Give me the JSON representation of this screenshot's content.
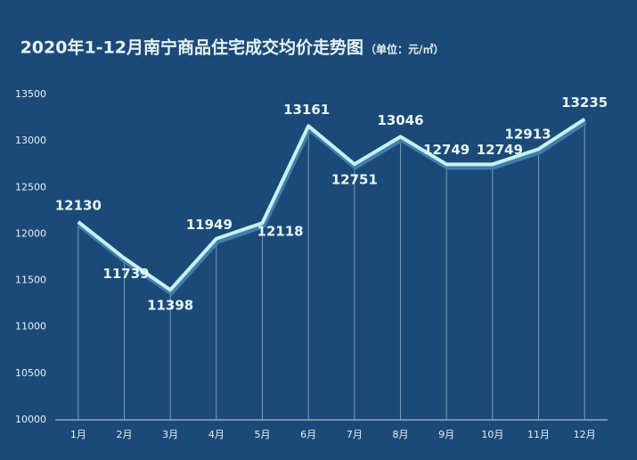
{
  "chart_data": {
    "type": "line",
    "title": "2020年1-12月南宁商品住宅成交均价走势图",
    "subtitle": "（单位：元/㎡）",
    "categories": [
      "1月",
      "2月",
      "3月",
      "4月",
      "5月",
      "6月",
      "7月",
      "8月",
      "9月",
      "10月",
      "11月",
      "12月"
    ],
    "values": [
      12130,
      11739,
      11398,
      11949,
      12118,
      13161,
      12751,
      13046,
      12749,
      12749,
      12913,
      13235
    ],
    "color": "#c8f0ec",
    "ylim": [
      10000,
      13500
    ],
    "yticks": [
      10000,
      10500,
      11000,
      11500,
      12000,
      12500,
      13000,
      13500
    ],
    "drop_lines": true
  }
}
